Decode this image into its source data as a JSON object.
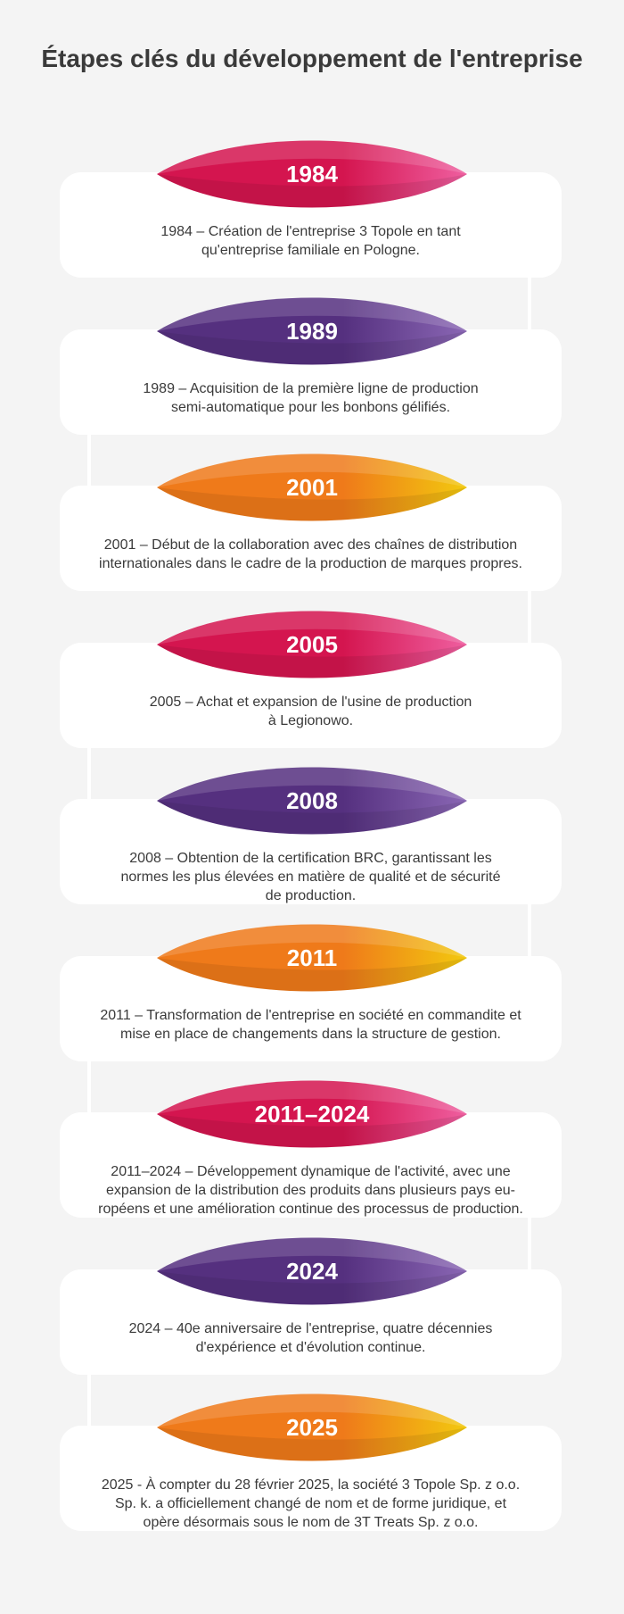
{
  "page": {
    "title": "Étapes clés du développement de l'entreprise"
  },
  "colors": {
    "background": "#f4f4f4",
    "card": "#ffffff",
    "pink": [
      "#d4154f",
      "#ef5fa0"
    ],
    "purple": [
      "#55307f",
      "#8a67b4"
    ],
    "orange": [
      "#ef7a1a",
      "#f2c90f"
    ]
  },
  "milestones": [
    {
      "year": "1984",
      "theme": "pink",
      "text": "1984 – Création de l'entreprise 3 Topole en tant\nqu'entreprise familiale en Pologne."
    },
    {
      "year": "1989",
      "theme": "purple",
      "text": "1989 – Acquisition de la première ligne de production\nsemi-automatique pour les bonbons gélifiés."
    },
    {
      "year": "2001",
      "theme": "orange",
      "text": "2001 – Début de la collaboration avec des chaînes de distribution\ninternationales dans le cadre de la production de marques propres."
    },
    {
      "year": "2005",
      "theme": "pink",
      "text": "2005 – Achat et expansion de l'usine de production\nà Legionowo."
    },
    {
      "year": "2008",
      "theme": "purple",
      "text": "2008 – Obtention de la certification BRC, garantissant les\nnormes les plus élevées en matière de qualité et de sécurité\nde production."
    },
    {
      "year": "2011",
      "theme": "orange",
      "text": "2011 – Transformation de l'entreprise en société en commandite et\nmise en place de changements dans la structure de gestion."
    },
    {
      "year": "2011–2024",
      "theme": "pink",
      "text": "2011–2024 – Développement dynamique de l'activité, avec une\nexpansion de la distribution des produits dans plusieurs pays eu-\nropéens et une amélioration continue des processus de production."
    },
    {
      "year": "2024",
      "theme": "purple",
      "text": "2024 – 40e anniversaire de l'entreprise, quatre décennies\nd'expérience et d'évolution continue."
    },
    {
      "year": "2025",
      "theme": "orange",
      "text": "2025 - À compter du 28 février 2025, la société 3 Topole Sp. z o.o.\nSp. k. a officiellement changé de nom et de forme juridique, et\nopère désormais sous le nom de 3T Treats Sp. z o.o."
    }
  ]
}
